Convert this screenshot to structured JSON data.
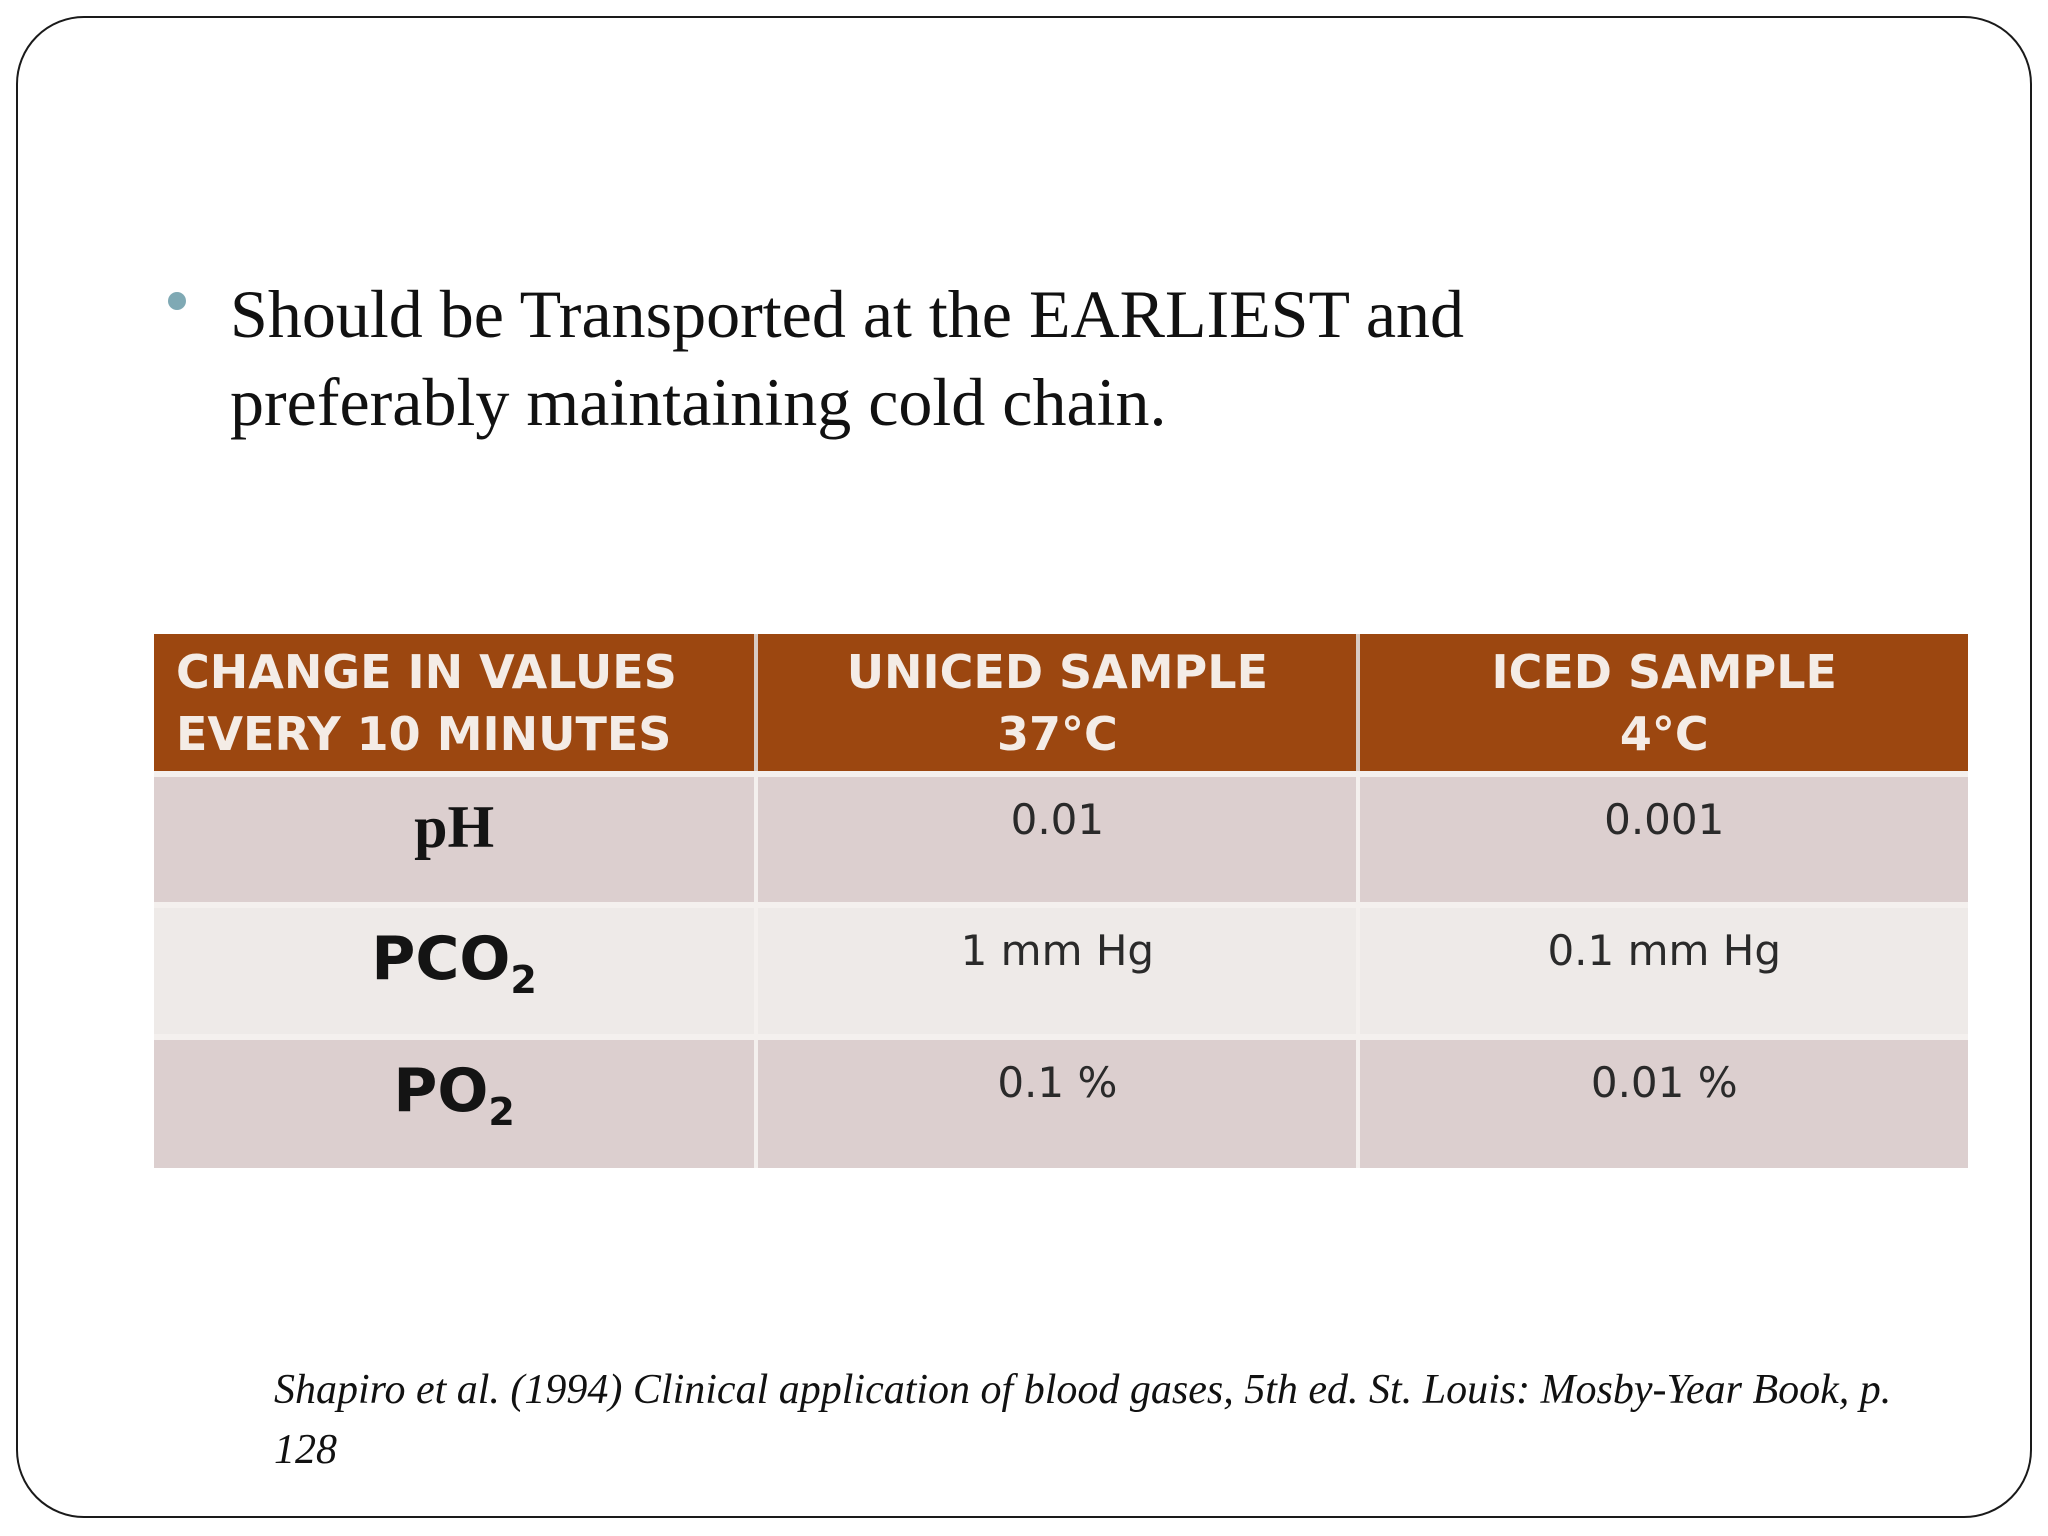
{
  "bullet": {
    "icon": "bullet-dot",
    "text": "Should be Transported at the EARLIEST and preferably maintaining cold chain."
  },
  "table": {
    "headers": {
      "col1_line1": "CHANGE IN VALUES",
      "col1_line2": "EVERY 10 MINUTES",
      "col2_line1": "UNICED SAMPLE",
      "col2_line2": "37°C",
      "col3_line1": "ICED SAMPLE",
      "col3_line2": "4°C"
    },
    "rows": [
      {
        "param": "pH",
        "param_sub": "",
        "uniced": "0.01",
        "iced": "0.001"
      },
      {
        "param": "PCO",
        "param_sub": "2",
        "uniced": "1 mm Hg",
        "iced": "0.1 mm Hg"
      },
      {
        "param": "PO",
        "param_sub": "2",
        "uniced": "0.1 %",
        "iced": "0.01 %"
      }
    ]
  },
  "citation": "Shapiro et al. (1994) Clinical application of blood gases, 5th ed. St. Louis: Mosby-Year Book, p. 128",
  "colors": {
    "header_bg": "#9c4710",
    "row_a": "#dccfcf",
    "row_b": "#eeeae8",
    "bullet": "#7fa9b4"
  }
}
